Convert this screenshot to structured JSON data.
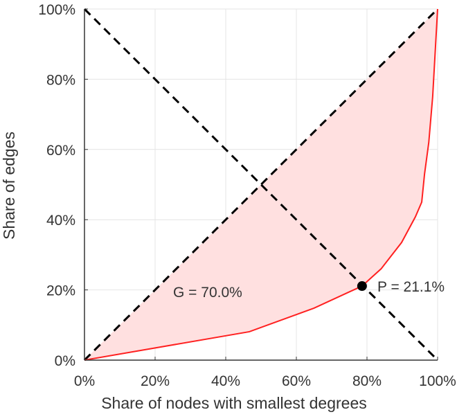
{
  "chart_data": {
    "type": "line",
    "title": "",
    "xlabel": "Share of nodes with smallest degrees",
    "ylabel": "Share of edges",
    "xlim": [
      0,
      100
    ],
    "ylim": [
      0,
      100
    ],
    "grid": true,
    "xticks": [
      "0%",
      "20%",
      "40%",
      "60%",
      "80%",
      "100%"
    ],
    "yticks": [
      "0%",
      "20%",
      "40%",
      "60%",
      "80%",
      "100%"
    ],
    "tick_values": [
      0,
      20,
      40,
      60,
      80,
      100
    ],
    "lorenz_curve": {
      "color": "#ff2020",
      "fill": "#ffe0e0",
      "x": [
        0,
        46.7,
        65,
        78.6,
        84,
        89.8,
        93.7,
        95.5,
        96.3,
        97.5,
        98.6,
        100
      ],
      "y": [
        0,
        8.1,
        14.8,
        21.1,
        26,
        33.5,
        40.8,
        45,
        53,
        62,
        75,
        100
      ]
    },
    "equality_line": {
      "x": [
        0,
        100
      ],
      "y": [
        0,
        100
      ]
    },
    "anti_diagonal": {
      "x": [
        0,
        100
      ],
      "y": [
        100,
        0
      ]
    },
    "point": {
      "x": 78.6,
      "y": 21.1
    },
    "annotations": {
      "gini": "G = 70.0%",
      "point_label": "P = 21.1%"
    }
  }
}
